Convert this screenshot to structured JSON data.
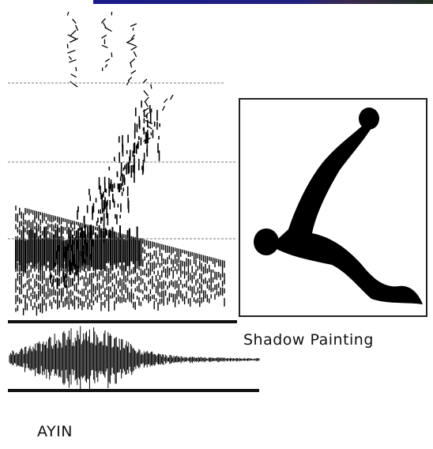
{
  "caption": "Shadow Painting",
  "title": "AYIN"
}
